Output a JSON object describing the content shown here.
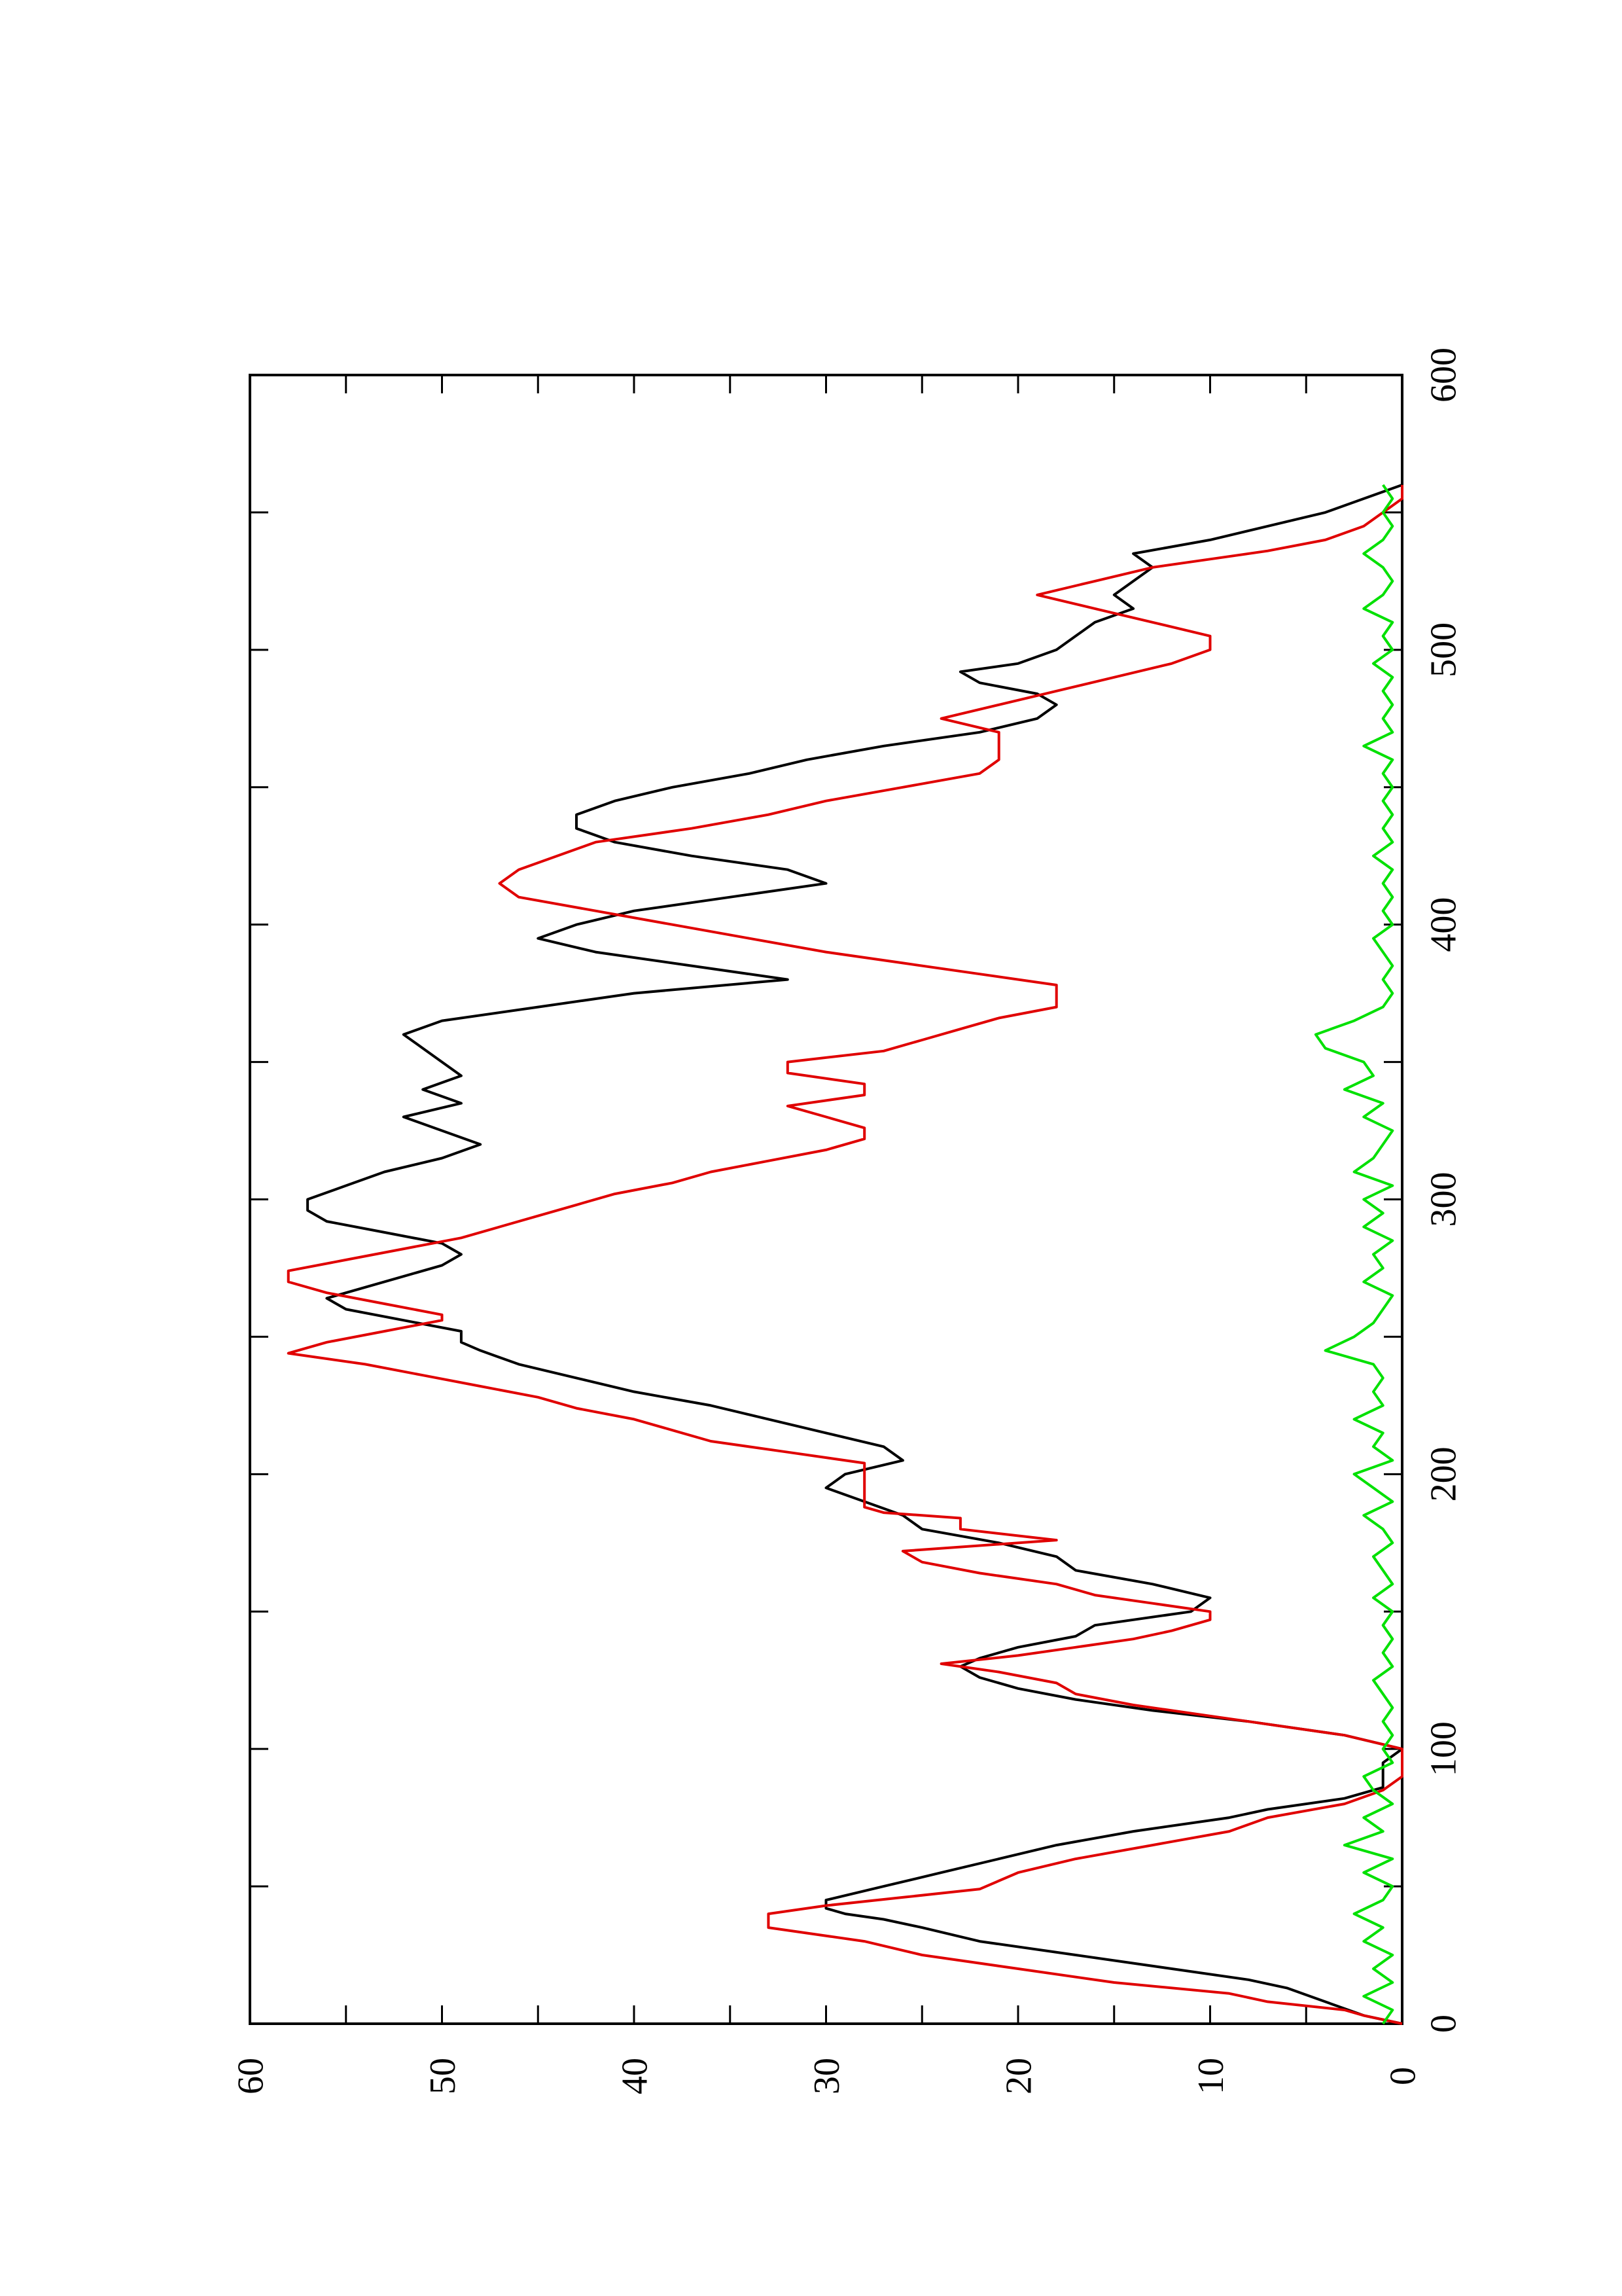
{
  "chart_data": {
    "type": "line",
    "orientation": "rotated-90-ccw",
    "title": "",
    "xlabel": "",
    "ylabel": "",
    "xlim": [
      0,
      600
    ],
    "ylim": [
      0,
      60
    ],
    "x_ticks": [
      0,
      100,
      200,
      300,
      400,
      500,
      600
    ],
    "y_ticks": [
      0,
      10,
      20,
      30,
      40,
      50,
      60
    ],
    "x_tick_labels": [
      "0",
      "100",
      "200",
      "300",
      "400",
      "500",
      "600"
    ],
    "y_tick_labels": [
      "0",
      "10",
      "20",
      "30",
      "40",
      "50",
      "60"
    ],
    "grid": false,
    "legend": "none",
    "series": [
      {
        "color": "#000000",
        "x": [
          0,
          3,
          8,
          13,
          16,
          20,
          25,
          30,
          35,
          38,
          40,
          42,
          45,
          50,
          55,
          60,
          65,
          70,
          75,
          78,
          82,
          86,
          90,
          95,
          100,
          105,
          110,
          114,
          118,
          122,
          126,
          130,
          133,
          137,
          141,
          145,
          150,
          155,
          160,
          165,
          170,
          175,
          180,
          185,
          190,
          195,
          200,
          205,
          210,
          215,
          220,
          225,
          230,
          235,
          240,
          245,
          248,
          252,
          256,
          260,
          264,
          268,
          272,
          276,
          280,
          284,
          288,
          292,
          296,
          300,
          305,
          310,
          315,
          320,
          325,
          330,
          335,
          340,
          345,
          350,
          355,
          360,
          365,
          370,
          375,
          380,
          385,
          390,
          395,
          400,
          405,
          410,
          415,
          420,
          425,
          430,
          435,
          440,
          445,
          450,
          455,
          460,
          465,
          470,
          475,
          480,
          484,
          488,
          492,
          495,
          500,
          505,
          510,
          515,
          520,
          525,
          530,
          535,
          540,
          545,
          550,
          555,
          560
        ],
        "values": [
          0,
          2,
          4,
          6,
          8,
          12,
          17,
          22,
          25,
          27,
          29,
          30,
          30,
          27,
          24,
          21,
          18,
          14,
          9,
          7,
          3,
          1,
          1,
          1,
          0,
          3,
          8,
          13,
          17,
          20,
          22,
          23,
          22,
          20,
          17,
          16,
          11,
          10,
          13,
          17,
          18,
          21,
          25,
          26,
          28,
          30,
          29,
          26,
          27,
          30,
          33,
          36,
          40,
          43,
          46,
          48,
          49,
          49,
          52,
          55,
          56,
          54,
          52,
          50,
          49,
          50,
          53,
          56,
          57,
          57,
          55,
          53,
          50,
          48,
          50,
          52,
          49,
          51,
          49,
          50,
          51,
          52,
          50,
          45,
          40,
          32,
          37,
          42,
          45,
          43,
          40,
          35,
          30,
          32,
          37,
          41,
          43,
          43,
          41,
          38,
          34,
          31,
          27,
          22,
          19,
          18,
          19,
          22,
          23,
          20,
          18,
          17,
          16,
          14,
          15,
          14,
          13,
          14,
          10,
          7,
          4,
          2,
          0
        ]
      },
      {
        "color": "#e00000",
        "x": [
          0,
          3,
          5,
          8,
          11,
          15,
          20,
          25,
          30,
          35,
          38,
          40,
          43,
          46,
          49,
          55,
          60,
          65,
          70,
          75,
          80,
          85,
          90,
          95,
          100,
          105,
          108,
          112,
          116,
          120,
          124,
          128,
          131,
          134,
          137,
          140,
          143,
          147,
          150,
          153,
          156,
          160,
          164,
          168,
          172,
          176,
          180,
          184,
          186,
          188,
          192,
          196,
          200,
          204,
          208,
          212,
          216,
          220,
          224,
          228,
          232,
          236,
          240,
          244,
          248,
          252,
          256,
          258,
          262,
          266,
          270,
          274,
          278,
          282,
          286,
          290,
          294,
          298,
          302,
          306,
          310,
          314,
          318,
          322,
          326,
          330,
          334,
          338,
          342,
          346,
          350,
          354,
          358,
          362,
          366,
          370,
          374,
          378,
          382,
          386,
          390,
          395,
          400,
          405,
          410,
          415,
          420,
          425,
          430,
          435,
          440,
          445,
          450,
          455,
          460,
          465,
          470,
          475,
          480,
          485,
          490,
          495,
          500,
          505,
          510,
          515,
          520,
          525,
          530,
          533,
          536,
          540,
          545,
          550,
          555,
          560
        ],
        "values": [
          0,
          2,
          3,
          7,
          9,
          15,
          20,
          25,
          28,
          33,
          33,
          33,
          30,
          26,
          22,
          20,
          17,
          13,
          9,
          7,
          3,
          1,
          0,
          0,
          0,
          3,
          6,
          10,
          14,
          17,
          18,
          21,
          24,
          20,
          17,
          14,
          12,
          10,
          10,
          13,
          16,
          18,
          22,
          25,
          26,
          18,
          23,
          23,
          27,
          28,
          28,
          28,
          28,
          28,
          32,
          36,
          38,
          40,
          43,
          45,
          48,
          51,
          54,
          58,
          56,
          53,
          50,
          50,
          53,
          56,
          58,
          58,
          55,
          52,
          49,
          47,
          45,
          43,
          41,
          38,
          36,
          33,
          30,
          28,
          28,
          30,
          32,
          28,
          28,
          32,
          32,
          27,
          25,
          23,
          21,
          18,
          18,
          18,
          22,
          26,
          30,
          34,
          38,
          42,
          46,
          47,
          46,
          44,
          42,
          37,
          33,
          30,
          26,
          22,
          21,
          21,
          21,
          24,
          21,
          18,
          15,
          12,
          10,
          10,
          13,
          16,
          19,
          16,
          13,
          10,
          7,
          4,
          2,
          1,
          0,
          0
        ]
      },
      {
        "color": "#00e000",
        "x": [
          0,
          5,
          10,
          15,
          20,
          25,
          30,
          35,
          40,
          45,
          50,
          55,
          60,
          65,
          70,
          75,
          80,
          85,
          90,
          95,
          100,
          105,
          110,
          115,
          120,
          125,
          130,
          135,
          140,
          145,
          150,
          155,
          160,
          165,
          170,
          175,
          180,
          185,
          190,
          195,
          200,
          205,
          210,
          215,
          220,
          225,
          230,
          235,
          240,
          245,
          250,
          255,
          260,
          265,
          270,
          275,
          280,
          285,
          290,
          295,
          300,
          305,
          310,
          315,
          320,
          325,
          330,
          335,
          340,
          345,
          350,
          355,
          360,
          365,
          370,
          375,
          380,
          385,
          390,
          395,
          400,
          405,
          410,
          415,
          420,
          425,
          430,
          435,
          440,
          445,
          450,
          455,
          460,
          465,
          470,
          475,
          480,
          485,
          490,
          495,
          500,
          505,
          510,
          515,
          520,
          525,
          530,
          535,
          540,
          545,
          550,
          555,
          560
        ],
        "values": [
          1,
          0.5,
          2,
          0.5,
          1.5,
          0.5,
          2,
          1,
          2.5,
          1,
          0.5,
          2,
          0.5,
          3,
          1,
          2,
          0.5,
          1.5,
          2,
          0.5,
          1,
          0.5,
          1,
          0.5,
          1,
          1.5,
          0.5,
          1,
          0.5,
          1,
          0.5,
          1.5,
          0.5,
          1,
          1.5,
          0.5,
          1,
          2,
          0.5,
          1.5,
          2.5,
          0.5,
          1.5,
          1,
          2.5,
          1,
          1.5,
          1,
          1.5,
          4,
          2.5,
          1.5,
          1,
          0.5,
          2,
          1,
          1.5,
          0.5,
          2,
          1,
          2,
          0.5,
          2.5,
          1.5,
          1,
          0.5,
          2,
          1,
          3,
          1.5,
          2,
          4,
          4.5,
          2.5,
          1,
          0.5,
          1,
          0.5,
          1,
          1.5,
          0.5,
          1,
          0.5,
          1,
          0.5,
          1.5,
          0.5,
          1,
          0.5,
          1,
          0.5,
          1,
          0.5,
          2,
          0.5,
          1,
          0.5,
          1,
          0.5,
          1.5,
          0.5,
          1,
          0.5,
          2,
          1,
          0.5,
          1,
          2,
          1,
          0.5,
          1,
          0.5,
          1
        ]
      }
    ]
  }
}
